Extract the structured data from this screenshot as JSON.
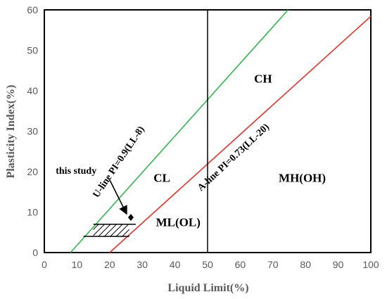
{
  "chart_data": {
    "type": "line",
    "title": "",
    "xlabel": "Liquid Limit(%)",
    "ylabel": "Plasticity Index(%)",
    "xlim": [
      0,
      100
    ],
    "ylim": [
      0,
      60
    ],
    "xticks": [
      "0",
      "10",
      "20",
      "30",
      "40",
      "50",
      "60",
      "70",
      "80",
      "90",
      "100"
    ],
    "yticks": [
      "0",
      "10",
      "20",
      "30",
      "40",
      "50",
      "60"
    ],
    "grid": false,
    "lines": [
      {
        "label": "U-line PI=0.9(LL-8)",
        "color": "#2eb84e",
        "x": [
          8,
          74.67
        ],
        "y": [
          0,
          60
        ]
      },
      {
        "label": "A-line PI=0.73(LL-20)",
        "color": "#e8322c",
        "x": [
          20,
          100
        ],
        "y": [
          0,
          58.4
        ]
      }
    ],
    "divider": {
      "x": 50,
      "color": "#000000"
    },
    "zones": [
      {
        "label": "CH",
        "x": 67,
        "y": 42
      },
      {
        "label": "CL",
        "x": 36,
        "y": 17.5
      },
      {
        "label": "MH(OH)",
        "x": 79,
        "y": 17.5
      },
      {
        "label": "ML(OL)",
        "x": 41,
        "y": 6.5
      }
    ],
    "hatched_region": {
      "x": [
        12,
        28
      ],
      "y": [
        4,
        7
      ]
    },
    "study_point": {
      "x": 26.5,
      "y": 8.7,
      "label": "this study"
    },
    "annotation_text": {
      "x": 3.5,
      "y": 19.5
    },
    "arrow_from": {
      "x": 20,
      "y": 18
    },
    "label_positions": {
      "u_line": {
        "x": 23.5,
        "y": 22,
        "angle": -56
      },
      "a_line": {
        "x": 58.5,
        "y": 23,
        "angle": -43
      }
    }
  }
}
